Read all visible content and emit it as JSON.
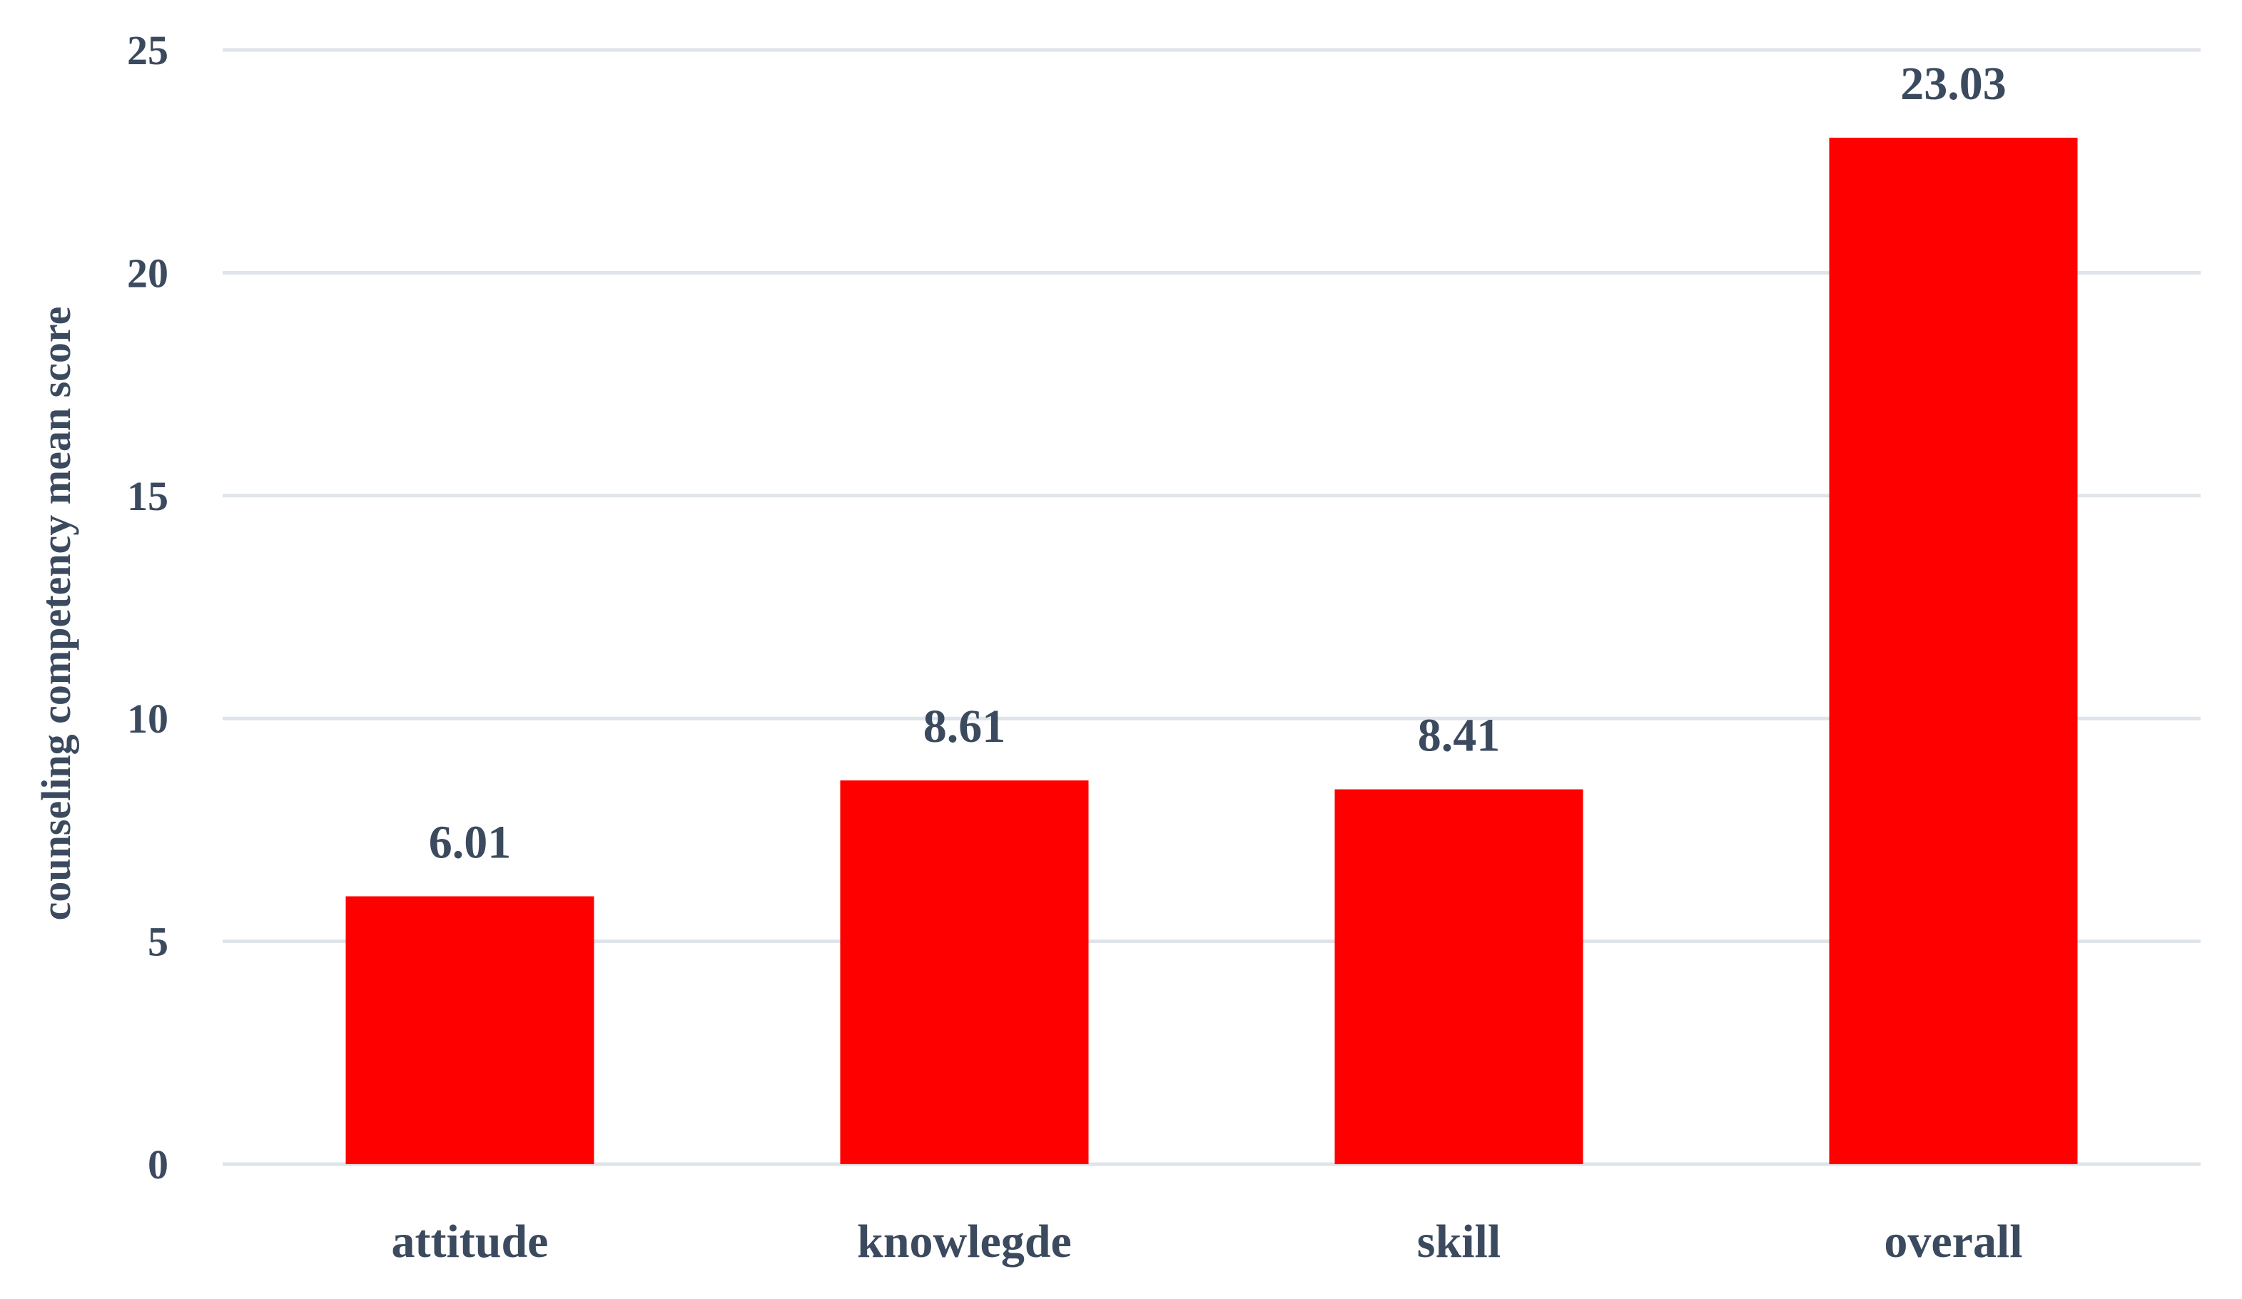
{
  "chart_data": {
    "type": "bar",
    "title": "",
    "xlabel": "",
    "ylabel": "counseling competency mean score",
    "categories": [
      "attitude",
      "knowlegde",
      "skill",
      "overall"
    ],
    "values": [
      6.01,
      8.61,
      8.41,
      23.03
    ],
    "data_labels": [
      "6.01",
      "8.61",
      "8.41",
      "23.03"
    ],
    "ylim": [
      0,
      25
    ],
    "yticks": [
      0,
      5,
      10,
      15,
      20,
      25
    ],
    "ytick_labels": [
      "0",
      "5",
      "10",
      "15",
      "20",
      "25"
    ],
    "grid": true,
    "legend": "none",
    "colors": {
      "bar": "#ff0000",
      "text": "#3b4a5e",
      "grid": "#dfe4ea",
      "background": "#ffffff"
    }
  }
}
